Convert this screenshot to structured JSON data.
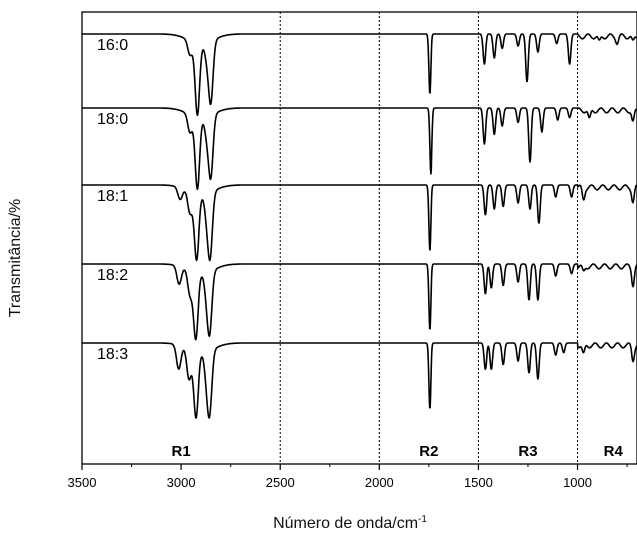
{
  "chart_data": {
    "type": "line",
    "title": "",
    "xlabel": "Número de onda/cm",
    "xlabel_superscript": "-1",
    "ylabel": "Transmitância/%",
    "xlim": [
      3500,
      700
    ],
    "x_reversed": true,
    "x_ticks": [
      3500,
      3000,
      2500,
      2000,
      1500,
      1000
    ],
    "y_ticks": [],
    "grid": false,
    "region_dividers": [
      2500,
      2000,
      1500,
      1000
    ],
    "regions": [
      {
        "label": "R1",
        "center": 3000
      },
      {
        "label": "R2",
        "center": 1750
      },
      {
        "label": "R3",
        "center": 1250
      },
      {
        "label": "R4",
        "center": 820
      }
    ],
    "series": [
      {
        "name": "16:0",
        "peaks": [
          [
            2955,
            0.12
          ],
          [
            2918,
            0.6
          ],
          [
            2870,
            0.12
          ],
          [
            2850,
            0.5
          ],
          [
            1745,
            0.5
          ],
          [
            1470,
            0.25
          ],
          [
            1420,
            0.2
          ],
          [
            1380,
            0.12
          ],
          [
            1300,
            0.1
          ],
          [
            1255,
            0.4
          ],
          [
            1200,
            0.15
          ],
          [
            1105,
            0.08
          ],
          [
            1040,
            0.25
          ],
          [
            890,
            0.05
          ],
          [
            800,
            0.05
          ],
          [
            720,
            0.05
          ]
        ]
      },
      {
        "name": "18:0",
        "peaks": [
          [
            2955,
            0.15
          ],
          [
            2918,
            0.6
          ],
          [
            2870,
            0.15
          ],
          [
            2850,
            0.5
          ],
          [
            1740,
            0.55
          ],
          [
            1470,
            0.3
          ],
          [
            1420,
            0.22
          ],
          [
            1380,
            0.15
          ],
          [
            1300,
            0.12
          ],
          [
            1240,
            0.45
          ],
          [
            1180,
            0.2
          ],
          [
            1100,
            0.1
          ],
          [
            1040,
            0.08
          ],
          [
            940,
            0.08
          ],
          [
            720,
            0.1
          ]
        ]
      },
      {
        "name": "18:1",
        "peaks": [
          [
            3005,
            0.1
          ],
          [
            2955,
            0.18
          ],
          [
            2922,
            0.55
          ],
          [
            2870,
            0.18
          ],
          [
            2853,
            0.5
          ],
          [
            1745,
            0.55
          ],
          [
            1465,
            0.25
          ],
          [
            1420,
            0.2
          ],
          [
            1375,
            0.18
          ],
          [
            1300,
            0.15
          ],
          [
            1240,
            0.2
          ],
          [
            1195,
            0.32
          ],
          [
            1110,
            0.1
          ],
          [
            1030,
            0.1
          ],
          [
            970,
            0.1
          ],
          [
            720,
            0.12
          ]
        ]
      },
      {
        "name": "18:2",
        "peaks": [
          [
            3010,
            0.15
          ],
          [
            2955,
            0.2
          ],
          [
            2926,
            0.55
          ],
          [
            2870,
            0.18
          ],
          [
            2855,
            0.45
          ],
          [
            1745,
            0.55
          ],
          [
            1465,
            0.25
          ],
          [
            1435,
            0.2
          ],
          [
            1375,
            0.18
          ],
          [
            1300,
            0.15
          ],
          [
            1245,
            0.3
          ],
          [
            1200,
            0.3
          ],
          [
            1110,
            0.1
          ],
          [
            1030,
            0.08
          ],
          [
            970,
            0.05
          ],
          [
            720,
            0.15
          ]
        ]
      },
      {
        "name": "18:3",
        "peaks": [
          [
            3012,
            0.2
          ],
          [
            2960,
            0.25
          ],
          [
            2925,
            0.55
          ],
          [
            2870,
            0.22
          ],
          [
            2855,
            0.45
          ],
          [
            1745,
            0.55
          ],
          [
            1465,
            0.22
          ],
          [
            1435,
            0.22
          ],
          [
            1375,
            0.18
          ],
          [
            1300,
            0.15
          ],
          [
            1245,
            0.25
          ],
          [
            1200,
            0.3
          ],
          [
            1110,
            0.1
          ],
          [
            1070,
            0.08
          ],
          [
            970,
            0.08
          ],
          [
            720,
            0.12
          ]
        ]
      }
    ]
  }
}
